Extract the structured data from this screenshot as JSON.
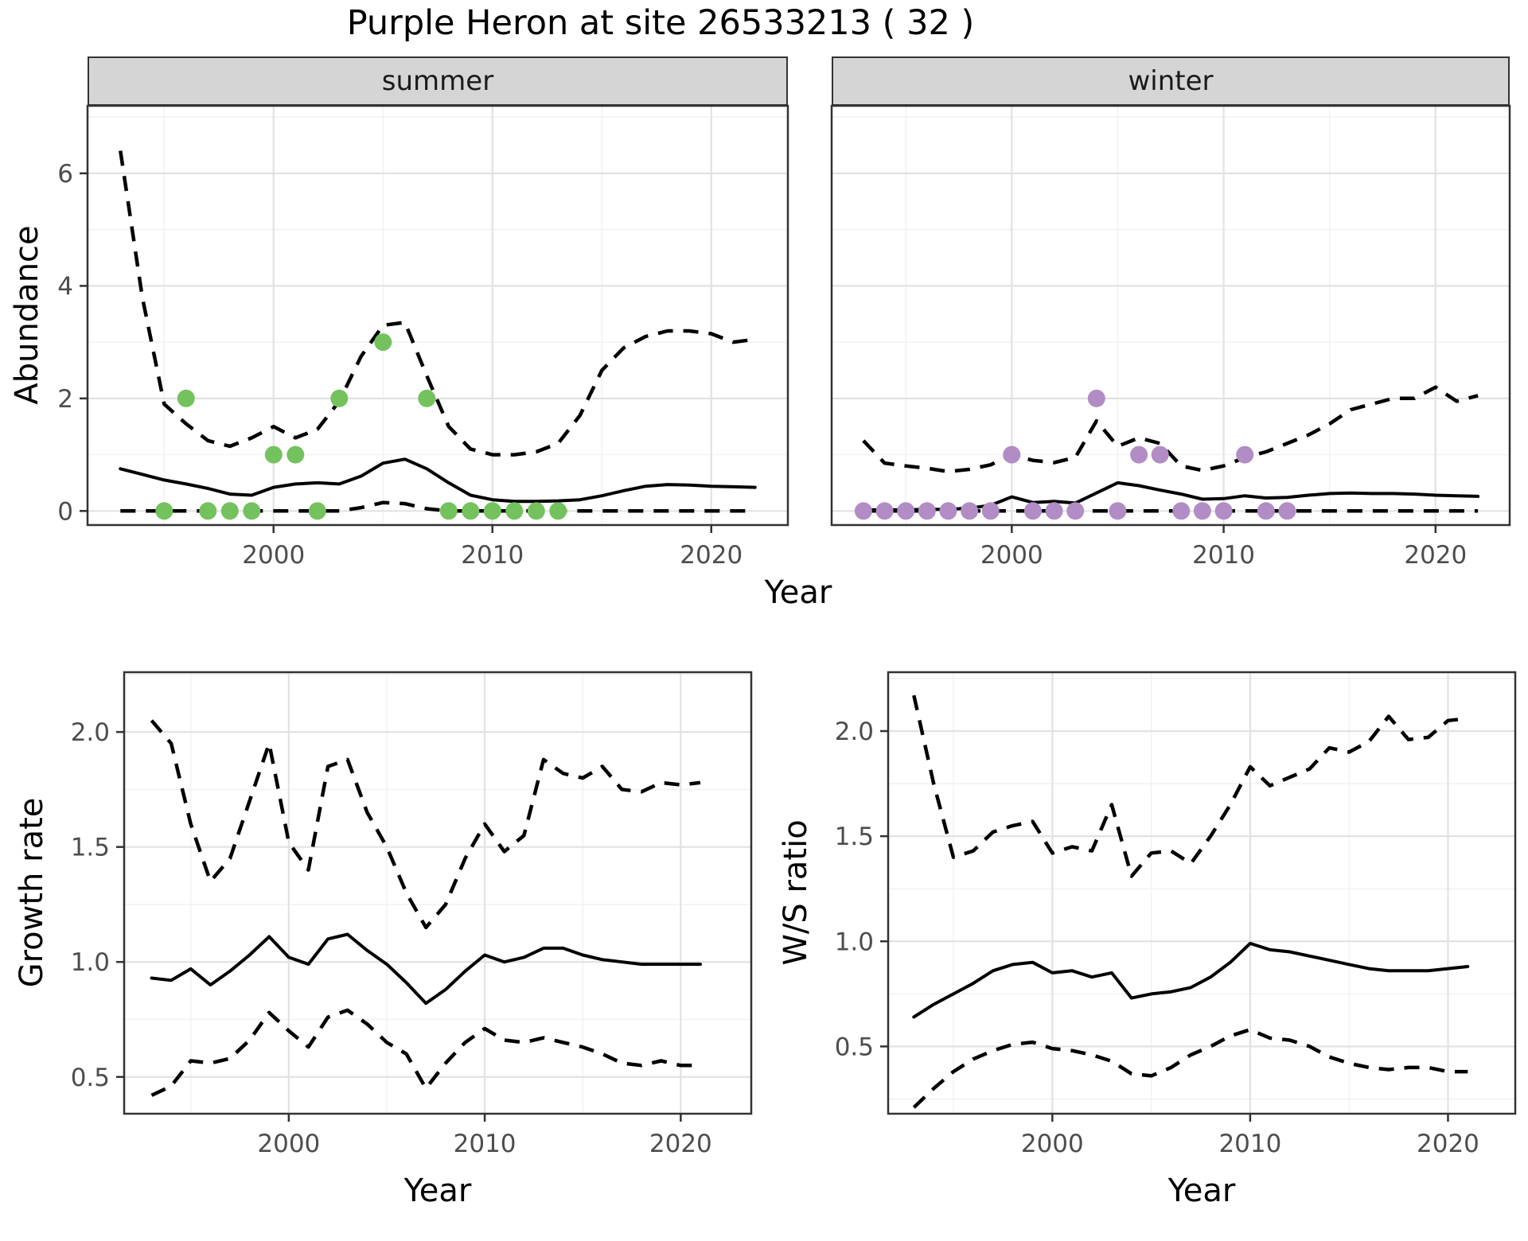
{
  "title": "Purple Heron at site 26533213 ( 32 )",
  "facets": {
    "summer": "summer",
    "winter": "winter"
  },
  "axis_labels": {
    "x": "Year",
    "abundance": "Abundance",
    "growth": "Growth rate",
    "ws": "W/S ratio"
  },
  "colors": {
    "summer_point": "#74c25e",
    "winter_point": "#b28cc4",
    "line": "#000000",
    "strip_bg": "#d5d5d5",
    "panel_border": "#333333",
    "grid_major": "#e2e2e2",
    "grid_minor": "#f1f1f1",
    "tick_text": "#4d4d4d"
  },
  "chart_data": [
    {
      "id": "abundance_summer",
      "type": "line",
      "facet": "summer",
      "title": "summer",
      "xlabel": "Year",
      "ylabel": "Abundance",
      "xlim": [
        1991.5,
        2023.5
      ],
      "ylim": [
        -0.25,
        7.2
      ],
      "x_major_ticks": [
        2000,
        2010,
        2020
      ],
      "x_tick_labels": [
        "2000",
        "2010",
        "2020"
      ],
      "x_minor_ticks": [
        1995,
        2005,
        2015
      ],
      "y_major_ticks": [
        0,
        2,
        4,
        6
      ],
      "y_tick_labels": [
        "0",
        "2",
        "4",
        "6"
      ],
      "y_minor_ticks": [
        1,
        3,
        5,
        7
      ],
      "x": [
        1993,
        1994,
        1995,
        1996,
        1997,
        1998,
        1999,
        2000,
        2001,
        2002,
        2003,
        2004,
        2005,
        2006,
        2007,
        2008,
        2009,
        2010,
        2011,
        2012,
        2013,
        2014,
        2015,
        2016,
        2017,
        2018,
        2019,
        2020,
        2021,
        2022
      ],
      "series": [
        {
          "name": "upper_ci",
          "style": "dashed",
          "y": [
            6.4,
            3.8,
            1.9,
            1.55,
            1.25,
            1.15,
            1.3,
            1.5,
            1.3,
            1.45,
            1.95,
            2.75,
            3.3,
            3.35,
            2.4,
            1.5,
            1.1,
            1.0,
            1.0,
            1.05,
            1.2,
            1.7,
            2.5,
            2.9,
            3.1,
            3.2,
            3.2,
            3.15,
            3.0,
            3.05
          ]
        },
        {
          "name": "median",
          "style": "solid",
          "y": [
            0.75,
            0.65,
            0.55,
            0.48,
            0.4,
            0.3,
            0.28,
            0.42,
            0.48,
            0.5,
            0.48,
            0.62,
            0.85,
            0.92,
            0.75,
            0.5,
            0.28,
            0.2,
            0.17,
            0.17,
            0.18,
            0.2,
            0.27,
            0.36,
            0.44,
            0.47,
            0.46,
            0.44,
            0.43,
            0.42
          ]
        },
        {
          "name": "lower_ci",
          "style": "dashed",
          "y": [
            0,
            0,
            0,
            0,
            0,
            0,
            0,
            0,
            0,
            0,
            0,
            0.06,
            0.15,
            0.13,
            0.04,
            0,
            0,
            0,
            0,
            0,
            0,
            0,
            0,
            0,
            0,
            0,
            0,
            0,
            0,
            0
          ]
        }
      ],
      "points": {
        "name": "observed",
        "color": "#74c25e",
        "x": [
          1995,
          1996,
          1997,
          1998,
          1999,
          2000,
          2001,
          2002,
          2003,
          2005,
          2007,
          2008,
          2009,
          2010,
          2011,
          2012,
          2013
        ],
        "y": [
          0,
          2,
          0,
          0,
          0,
          1,
          1,
          0,
          2,
          3,
          2,
          0,
          0,
          0,
          0,
          0,
          0
        ]
      }
    },
    {
      "id": "abundance_winter",
      "type": "line",
      "facet": "winter",
      "title": "winter",
      "xlabel": "Year",
      "ylabel": "Abundance",
      "xlim": [
        1991.5,
        2023.5
      ],
      "ylim": [
        -0.25,
        7.2
      ],
      "x_major_ticks": [
        2000,
        2010,
        2020
      ],
      "x_tick_labels": [
        "2000",
        "2010",
        "2020"
      ],
      "x_minor_ticks": [
        1995,
        2005,
        2015
      ],
      "y_major_ticks": [
        0,
        2,
        4,
        6
      ],
      "y_tick_labels": [],
      "y_minor_ticks": [
        1,
        3,
        5,
        7
      ],
      "x": [
        1993,
        1994,
        1995,
        1996,
        1997,
        1998,
        1999,
        2000,
        2001,
        2002,
        2003,
        2004,
        2005,
        2006,
        2007,
        2008,
        2009,
        2010,
        2011,
        2012,
        2013,
        2014,
        2015,
        2016,
        2017,
        2018,
        2019,
        2020,
        2021,
        2022
      ],
      "series": [
        {
          "name": "upper_ci",
          "style": "dashed",
          "y": [
            1.25,
            0.85,
            0.8,
            0.76,
            0.7,
            0.74,
            0.82,
            1.0,
            0.9,
            0.86,
            0.95,
            1.6,
            1.15,
            1.3,
            1.2,
            0.8,
            0.72,
            0.8,
            0.95,
            1.05,
            1.2,
            1.35,
            1.55,
            1.8,
            1.9,
            2.0,
            2.0,
            2.2,
            1.95,
            2.05
          ]
        },
        {
          "name": "median",
          "style": "solid",
          "y": [
            0.02,
            0.02,
            0.02,
            0.03,
            0.03,
            0.05,
            0.1,
            0.25,
            0.15,
            0.17,
            0.14,
            0.32,
            0.5,
            0.45,
            0.37,
            0.3,
            0.21,
            0.22,
            0.27,
            0.23,
            0.24,
            0.28,
            0.31,
            0.32,
            0.31,
            0.31,
            0.3,
            0.28,
            0.27,
            0.26
          ]
        },
        {
          "name": "lower_ci",
          "style": "dashed",
          "y": [
            0,
            0,
            0,
            0,
            0,
            0,
            0,
            0,
            0,
            0,
            0,
            0,
            0,
            0,
            0,
            0,
            0,
            0,
            0,
            0,
            0,
            0,
            0,
            0,
            0,
            0,
            0,
            0,
            0,
            0
          ]
        }
      ],
      "points": {
        "name": "observed",
        "color": "#b28cc4",
        "x": [
          1993,
          1994,
          1995,
          1996,
          1997,
          1998,
          1999,
          2000,
          2001,
          2002,
          2003,
          2004,
          2005,
          2006,
          2007,
          2008,
          2009,
          2010,
          2011,
          2012,
          2013
        ],
        "y": [
          0,
          0,
          0,
          0,
          0,
          0,
          0,
          1,
          0,
          0,
          0,
          2,
          0,
          1,
          1,
          0,
          0,
          0,
          1,
          0,
          0
        ]
      }
    },
    {
      "id": "growth_rate",
      "type": "line",
      "title": "Growth rate",
      "xlabel": "Year",
      "ylabel": "Growth rate",
      "xlim": [
        1991.6,
        2023.6
      ],
      "ylim": [
        0.34,
        2.26
      ],
      "x_major_ticks": [
        2000,
        2010,
        2020
      ],
      "x_tick_labels": [
        "2000",
        "2010",
        "2020"
      ],
      "x_minor_ticks": [
        1995,
        2005,
        2015
      ],
      "y_major_ticks": [
        0.5,
        1.0,
        1.5,
        2.0
      ],
      "y_tick_labels": [
        "0.5",
        "1.0",
        "1.5",
        "2.0"
      ],
      "y_minor_ticks": [
        0.75,
        1.25,
        1.75,
        2.25
      ],
      "x": [
        1993,
        1994,
        1995,
        1996,
        1997,
        1998,
        1999,
        2000,
        2001,
        2002,
        2003,
        2004,
        2005,
        2006,
        2007,
        2008,
        2009,
        2010,
        2011,
        2012,
        2013,
        2014,
        2015,
        2016,
        2017,
        2018,
        2019,
        2020,
        2021
      ],
      "series": [
        {
          "name": "upper_ci",
          "style": "dashed",
          "y": [
            2.05,
            1.95,
            1.6,
            1.35,
            1.45,
            1.7,
            1.95,
            1.52,
            1.4,
            1.85,
            1.88,
            1.65,
            1.5,
            1.3,
            1.15,
            1.25,
            1.45,
            1.6,
            1.48,
            1.55,
            1.88,
            1.82,
            1.8,
            1.85,
            1.75,
            1.74,
            1.78,
            1.77,
            1.78
          ]
        },
        {
          "name": "median",
          "style": "solid",
          "y": [
            0.93,
            0.92,
            0.97,
            0.9,
            0.96,
            1.03,
            1.11,
            1.02,
            0.99,
            1.1,
            1.12,
            1.05,
            0.99,
            0.91,
            0.82,
            0.88,
            0.96,
            1.03,
            1.0,
            1.02,
            1.06,
            1.06,
            1.03,
            1.01,
            1.0,
            0.99,
            0.99,
            0.99,
            0.99
          ]
        },
        {
          "name": "lower_ci",
          "style": "dashed",
          "y": [
            0.42,
            0.46,
            0.57,
            0.56,
            0.58,
            0.66,
            0.78,
            0.7,
            0.63,
            0.76,
            0.79,
            0.73,
            0.65,
            0.6,
            0.45,
            0.56,
            0.65,
            0.71,
            0.66,
            0.65,
            0.67,
            0.65,
            0.63,
            0.6,
            0.56,
            0.55,
            0.57,
            0.55,
            0.55
          ]
        }
      ]
    },
    {
      "id": "ws_ratio",
      "type": "line",
      "title": "W/S ratio",
      "xlabel": "Year",
      "ylabel": "W/S ratio",
      "xlim": [
        1991.7,
        2023.4
      ],
      "ylim": [
        0.18,
        2.28
      ],
      "x_major_ticks": [
        2000,
        2010,
        2020
      ],
      "x_tick_labels": [
        "2000",
        "2010",
        "2020"
      ],
      "x_minor_ticks": [
        1995,
        2005,
        2015
      ],
      "y_major_ticks": [
        0.5,
        1.0,
        1.5,
        2.0
      ],
      "y_tick_labels": [
        "0.5",
        "1.0",
        "1.5",
        "2.0"
      ],
      "y_minor_ticks": [
        0.25,
        0.75,
        1.25,
        1.75,
        2.25
      ],
      "x": [
        1993,
        1994,
        1995,
        1996,
        1997,
        1998,
        1999,
        2000,
        2001,
        2002,
        2003,
        2004,
        2005,
        2006,
        2007,
        2008,
        2009,
        2010,
        2011,
        2012,
        2013,
        2014,
        2015,
        2016,
        2017,
        2018,
        2019,
        2020,
        2021
      ],
      "series": [
        {
          "name": "upper_ci",
          "style": "dashed",
          "y": [
            2.17,
            1.75,
            1.4,
            1.43,
            1.52,
            1.55,
            1.57,
            1.42,
            1.45,
            1.43,
            1.65,
            1.31,
            1.42,
            1.43,
            1.37,
            1.5,
            1.65,
            1.83,
            1.74,
            1.78,
            1.82,
            1.92,
            1.9,
            1.95,
            2.07,
            1.96,
            1.97,
            2.05,
            2.06
          ]
        },
        {
          "name": "median",
          "style": "solid",
          "y": [
            0.64,
            0.7,
            0.75,
            0.8,
            0.86,
            0.89,
            0.9,
            0.85,
            0.86,
            0.83,
            0.85,
            0.73,
            0.75,
            0.76,
            0.78,
            0.83,
            0.9,
            0.99,
            0.96,
            0.95,
            0.93,
            0.91,
            0.89,
            0.87,
            0.86,
            0.86,
            0.86,
            0.87,
            0.88
          ]
        },
        {
          "name": "lower_ci",
          "style": "dashed",
          "y": [
            0.21,
            0.3,
            0.38,
            0.44,
            0.48,
            0.51,
            0.52,
            0.49,
            0.48,
            0.46,
            0.43,
            0.37,
            0.36,
            0.4,
            0.46,
            0.5,
            0.55,
            0.58,
            0.54,
            0.53,
            0.5,
            0.45,
            0.42,
            0.4,
            0.39,
            0.4,
            0.4,
            0.38,
            0.38
          ]
        }
      ]
    }
  ]
}
